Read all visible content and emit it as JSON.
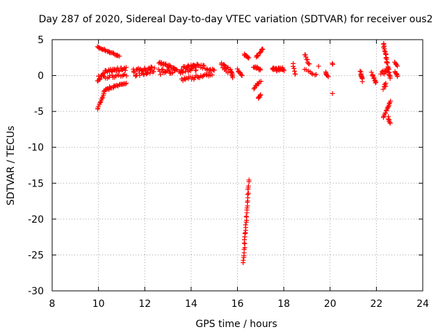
{
  "chart_data": {
    "type": "scatter",
    "title": "Day 287 of 2020, Sidereal Day-to-day VTEC variation (SDTVAR) for receiver ous2",
    "xlabel": "GPS time / hours",
    "ylabel": "SDTVAR / TECUs",
    "xlim": [
      8,
      24
    ],
    "ylim": [
      -30,
      5
    ],
    "xticks": [
      8,
      10,
      12,
      14,
      16,
      18,
      20,
      22,
      24
    ],
    "yticks": [
      5,
      0,
      -5,
      -10,
      -15,
      -20,
      -25,
      -30
    ],
    "grid": true,
    "marker": "+",
    "marker_color": "#ff0000",
    "series": [
      {
        "name": "SDTVAR",
        "segments": [
          {
            "x0": 9.95,
            "y0": 4.0,
            "x1": 10.9,
            "y1": 2.7,
            "n": 26,
            "spread": 0.15
          },
          {
            "x0": 9.95,
            "y0": -4.7,
            "x1": 10.3,
            "y1": -1.9,
            "n": 14,
            "spread": 0.15
          },
          {
            "x0": 10.3,
            "y0": -1.9,
            "x1": 11.2,
            "y1": -1.0,
            "n": 24,
            "spread": 0.3
          },
          {
            "x0": 9.95,
            "y0": -0.8,
            "x1": 10.3,
            "y1": 0.6,
            "n": 10,
            "spread": 0.2
          },
          {
            "x0": 10.3,
            "y0": 0.7,
            "x1": 11.2,
            "y1": 0.9,
            "n": 26,
            "spread": 0.5
          },
          {
            "x0": 10.0,
            "y0": -0.3,
            "x1": 11.2,
            "y1": 0.2,
            "n": 20,
            "spread": 0.5
          },
          {
            "x0": 11.5,
            "y0": 0.4,
            "x1": 12.4,
            "y1": 0.7,
            "n": 40,
            "spread": 1.1
          },
          {
            "x0": 12.6,
            "y0": 1.8,
            "x1": 13.4,
            "y1": 0.9,
            "n": 24,
            "spread": 0.4
          },
          {
            "x0": 12.6,
            "y0": 0.5,
            "x1": 13.3,
            "y1": 0.6,
            "n": 18,
            "spread": 0.8
          },
          {
            "x0": 13.5,
            "y0": 0.8,
            "x1": 14.2,
            "y1": 1.2,
            "n": 30,
            "spread": 1.0
          },
          {
            "x0": 13.6,
            "y0": -0.6,
            "x1": 14.9,
            "y1": 0.2,
            "n": 26,
            "spread": 0.5
          },
          {
            "x0": 14.1,
            "y0": 1.5,
            "x1": 15.0,
            "y1": 0.8,
            "n": 22,
            "spread": 0.6
          },
          {
            "x0": 15.3,
            "y0": 1.6,
            "x1": 15.6,
            "y1": 0.7,
            "n": 14,
            "spread": 0.8
          },
          {
            "x0": 15.7,
            "y0": 0.9,
            "x1": 15.8,
            "y1": -0.2,
            "n": 10,
            "spread": 0.2
          },
          {
            "x0": 16.0,
            "y0": 0.8,
            "x1": 16.2,
            "y1": 0.0,
            "n": 8,
            "spread": 0.4
          },
          {
            "x0": 16.3,
            "y0": 3.0,
            "x1": 16.5,
            "y1": 2.4,
            "n": 8,
            "spread": 0.2
          },
          {
            "x0": 16.5,
            "y0": -14.6,
            "x1": 16.25,
            "y1": -26.0,
            "n": 34,
            "spread": 0.4
          },
          {
            "x0": 16.7,
            "y0": 1.3,
            "x1": 17.0,
            "y1": 0.8,
            "n": 12,
            "spread": 0.3
          },
          {
            "x0": 16.8,
            "y0": 2.5,
            "x1": 17.1,
            "y1": 3.8,
            "n": 12,
            "spread": 0.4
          },
          {
            "x0": 16.7,
            "y0": -1.8,
            "x1": 17.0,
            "y1": -0.8,
            "n": 10,
            "spread": 0.3
          },
          {
            "x0": 16.9,
            "y0": -3.2,
            "x1": 17.0,
            "y1": -2.6,
            "n": 6,
            "spread": 0.2
          },
          {
            "x0": 17.5,
            "y0": 0.8,
            "x1": 18.0,
            "y1": 0.9,
            "n": 24,
            "spread": 0.5
          },
          {
            "x0": 18.4,
            "y0": 1.7,
            "x1": 18.5,
            "y1": 0.2,
            "n": 5,
            "spread": 0.1
          },
          {
            "x0": 18.9,
            "y0": 3.0,
            "x1": 19.1,
            "y1": 1.5,
            "n": 8,
            "spread": 0.3
          },
          {
            "x0": 18.9,
            "y0": 0.8,
            "x1": 19.4,
            "y1": 0.1,
            "n": 8,
            "spread": 0.3
          },
          {
            "x0": 19.8,
            "y0": 0.4,
            "x1": 19.9,
            "y1": -0.1,
            "n": 6,
            "spread": 0.2
          },
          {
            "x0": 20.1,
            "y0": 1.7,
            "x1": 20.1,
            "y1": 1.6,
            "n": 2,
            "spread": 0.1
          },
          {
            "x0": 21.3,
            "y0": 0.5,
            "x1": 21.4,
            "y1": -0.7,
            "n": 10,
            "spread": 0.3
          },
          {
            "x0": 21.8,
            "y0": 0.3,
            "x1": 22.0,
            "y1": -1.0,
            "n": 10,
            "spread": 0.4
          },
          {
            "x0": 22.3,
            "y0": 4.5,
            "x1": 22.6,
            "y1": -0.5,
            "n": 28,
            "spread": 0.4
          },
          {
            "x0": 22.2,
            "y0": 0.2,
            "x1": 22.5,
            "y1": 0.8,
            "n": 10,
            "spread": 0.5
          },
          {
            "x0": 22.3,
            "y0": -1.8,
            "x1": 22.4,
            "y1": -1.0,
            "n": 6,
            "spread": 0.3
          },
          {
            "x0": 22.6,
            "y0": -3.6,
            "x1": 22.3,
            "y1": -5.8,
            "n": 14,
            "spread": 0.2
          },
          {
            "x0": 22.5,
            "y0": -5.8,
            "x1": 22.6,
            "y1": -6.7,
            "n": 6,
            "spread": 0.2
          },
          {
            "x0": 22.8,
            "y0": 1.9,
            "x1": 22.9,
            "y1": 1.3,
            "n": 5,
            "spread": 0.1
          },
          {
            "x0": 22.8,
            "y0": 0.5,
            "x1": 22.9,
            "y1": -0.2,
            "n": 8,
            "spread": 0.3
          }
        ],
        "points": [
          [
            20.1,
            -2.5
          ],
          [
            19.5,
            1.3
          ],
          [
            18.5,
            0.2
          ],
          [
            16.3,
            2.8
          ],
          [
            22.4,
            -1.5
          ]
        ]
      }
    ]
  }
}
